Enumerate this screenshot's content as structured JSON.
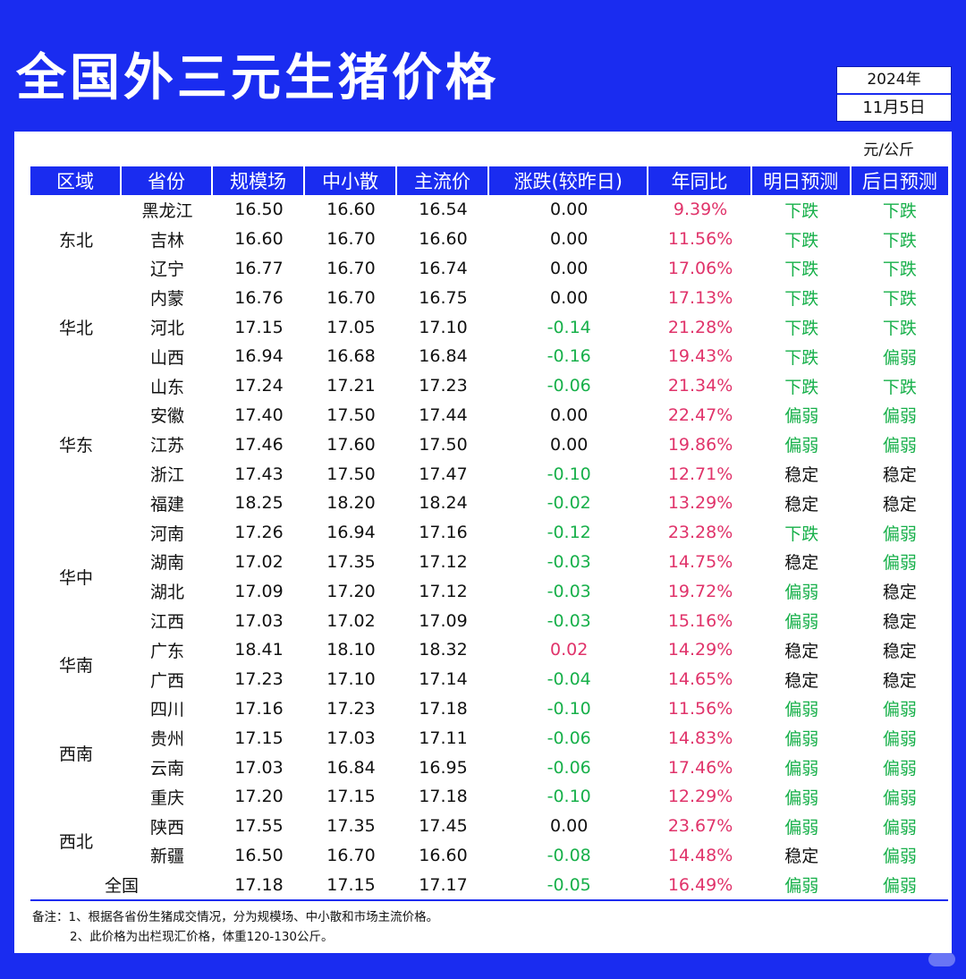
{
  "title": "全国外三元生猪价格",
  "date": {
    "year": "2024年",
    "day": "11月5日"
  },
  "unit": "元/公斤",
  "headers": [
    "区域",
    "省份",
    "规模场",
    "中小散",
    "主流价",
    "涨跌(较昨日)",
    "年同比",
    "明日预测",
    "后日预测"
  ],
  "regions": [
    {
      "name": "东北",
      "rows": [
        {
          "province": "黑龙江",
          "large": "16.50",
          "small": "16.60",
          "main": "16.54",
          "change": "0.00",
          "yoy": "9.39%",
          "tomorrow": "下跌",
          "after": "下跌"
        },
        {
          "province": "吉林",
          "large": "16.60",
          "small": "16.70",
          "main": "16.60",
          "change": "0.00",
          "yoy": "11.56%",
          "tomorrow": "下跌",
          "after": "下跌"
        },
        {
          "province": "辽宁",
          "large": "16.77",
          "small": "16.70",
          "main": "16.74",
          "change": "0.00",
          "yoy": "17.06%",
          "tomorrow": "下跌",
          "after": "下跌"
        }
      ]
    },
    {
      "name": "华北",
      "rows": [
        {
          "province": "内蒙",
          "large": "16.76",
          "small": "16.70",
          "main": "16.75",
          "change": "0.00",
          "yoy": "17.13%",
          "tomorrow": "下跌",
          "after": "下跌"
        },
        {
          "province": "河北",
          "large": "17.15",
          "small": "17.05",
          "main": "17.10",
          "change": "-0.14",
          "yoy": "21.28%",
          "tomorrow": "下跌",
          "after": "下跌"
        },
        {
          "province": "山西",
          "large": "16.94",
          "small": "16.68",
          "main": "16.84",
          "change": "-0.16",
          "yoy": "19.43%",
          "tomorrow": "下跌",
          "after": "偏弱"
        }
      ]
    },
    {
      "name": "华东",
      "rows": [
        {
          "province": "山东",
          "large": "17.24",
          "small": "17.21",
          "main": "17.23",
          "change": "-0.06",
          "yoy": "21.34%",
          "tomorrow": "下跌",
          "after": "下跌"
        },
        {
          "province": "安徽",
          "large": "17.40",
          "small": "17.50",
          "main": "17.44",
          "change": "0.00",
          "yoy": "22.47%",
          "tomorrow": "偏弱",
          "after": "偏弱"
        },
        {
          "province": "江苏",
          "large": "17.46",
          "small": "17.60",
          "main": "17.50",
          "change": "0.00",
          "yoy": "19.86%",
          "tomorrow": "偏弱",
          "after": "偏弱"
        },
        {
          "province": "浙江",
          "large": "17.43",
          "small": "17.50",
          "main": "17.47",
          "change": "-0.10",
          "yoy": "12.71%",
          "tomorrow": "稳定",
          "after": "稳定"
        },
        {
          "province": "福建",
          "large": "18.25",
          "small": "18.20",
          "main": "18.24",
          "change": "-0.02",
          "yoy": "13.29%",
          "tomorrow": "稳定",
          "after": "稳定"
        }
      ]
    },
    {
      "name": "华中",
      "rows": [
        {
          "province": "河南",
          "large": "17.26",
          "small": "16.94",
          "main": "17.16",
          "change": "-0.12",
          "yoy": "23.28%",
          "tomorrow": "下跌",
          "after": "偏弱"
        },
        {
          "province": "湖南",
          "large": "17.02",
          "small": "17.35",
          "main": "17.12",
          "change": "-0.03",
          "yoy": "14.75%",
          "tomorrow": "稳定",
          "after": "偏弱"
        },
        {
          "province": "湖北",
          "large": "17.09",
          "small": "17.20",
          "main": "17.12",
          "change": "-0.03",
          "yoy": "19.72%",
          "tomorrow": "偏弱",
          "after": "稳定"
        },
        {
          "province": "江西",
          "large": "17.03",
          "small": "17.02",
          "main": "17.09",
          "change": "-0.03",
          "yoy": "15.16%",
          "tomorrow": "偏弱",
          "after": "稳定"
        }
      ]
    },
    {
      "name": "华南",
      "rows": [
        {
          "province": "广东",
          "large": "18.41",
          "small": "18.10",
          "main": "18.32",
          "change": "0.02",
          "yoy": "14.29%",
          "tomorrow": "稳定",
          "after": "稳定"
        },
        {
          "province": "广西",
          "large": "17.23",
          "small": "17.10",
          "main": "17.14",
          "change": "-0.04",
          "yoy": "14.65%",
          "tomorrow": "稳定",
          "after": "稳定"
        }
      ]
    },
    {
      "name": "西南",
      "rows": [
        {
          "province": "四川",
          "large": "17.16",
          "small": "17.23",
          "main": "17.18",
          "change": "-0.10",
          "yoy": "11.56%",
          "tomorrow": "偏弱",
          "after": "偏弱"
        },
        {
          "province": "贵州",
          "large": "17.15",
          "small": "17.03",
          "main": "17.11",
          "change": "-0.06",
          "yoy": "14.83%",
          "tomorrow": "偏弱",
          "after": "偏弱"
        },
        {
          "province": "云南",
          "large": "17.03",
          "small": "16.84",
          "main": "16.95",
          "change": "-0.06",
          "yoy": "17.46%",
          "tomorrow": "偏弱",
          "after": "偏弱"
        },
        {
          "province": "重庆",
          "large": "17.20",
          "small": "17.15",
          "main": "17.18",
          "change": "-0.10",
          "yoy": "12.29%",
          "tomorrow": "偏弱",
          "after": "偏弱"
        }
      ]
    },
    {
      "name": "西北",
      "rows": [
        {
          "province": "陕西",
          "large": "17.55",
          "small": "17.35",
          "main": "17.45",
          "change": "0.00",
          "yoy": "23.67%",
          "tomorrow": "偏弱",
          "after": "偏弱"
        },
        {
          "province": "新疆",
          "large": "16.50",
          "small": "16.70",
          "main": "16.60",
          "change": "-0.08",
          "yoy": "14.48%",
          "tomorrow": "稳定",
          "after": "偏弱"
        }
      ]
    }
  ],
  "total": {
    "label": "全国",
    "large": "17.18",
    "small": "17.15",
    "main": "17.17",
    "change": "-0.05",
    "yoy": "16.49%",
    "tomorrow": "偏弱",
    "after": "偏弱"
  },
  "notes": [
    "备注：1、根据各省份生猪成交情况，分为规模场、中小散和市场主流价格。",
    "2、此价格为出栏现汇价格，体重120-130公斤。"
  ],
  "watermark": "小红书",
  "colors": {
    "brand": "#1a2cf0",
    "up": "#e0336a",
    "down": "#17b04a"
  }
}
